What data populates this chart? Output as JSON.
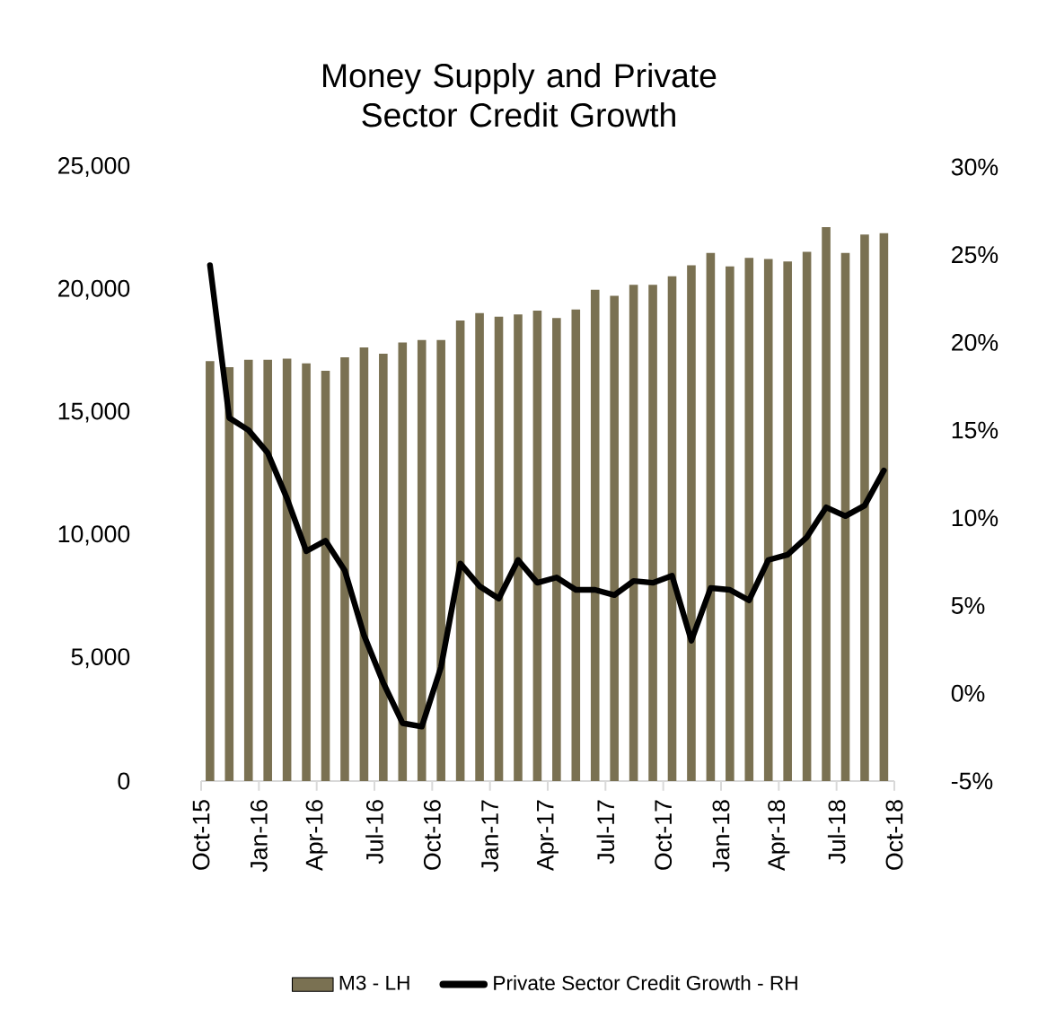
{
  "chart_data": {
    "type": "bar",
    "title": "Money Supply and Private Sector Credit Growth",
    "x": [
      "2015-10-15",
      "2015-11-15",
      "2015-12-15",
      "2016-01-15",
      "2016-02-15",
      "2016-03-15",
      "2016-04-15",
      "2016-05-15",
      "2016-06-15",
      "2016-07-15",
      "2016-08-15",
      "2016-09-15",
      "2016-10-15",
      "2016-11-15",
      "2016-12-15",
      "2017-01-15",
      "2017-02-15",
      "2017-03-15",
      "2017-04-15",
      "2017-05-15",
      "2017-06-15",
      "2017-07-15",
      "2017-08-15",
      "2017-09-15",
      "2017-10-15",
      "2017-11-15",
      "2017-12-15",
      "2018-01-15",
      "2018-02-15",
      "2018-03-15",
      "2018-04-15",
      "2018-05-15",
      "2018-06-15",
      "2018-07-15",
      "2018-08-15",
      "2018-09-15"
    ],
    "series": [
      {
        "name": "M3 - LH",
        "color": "#7a7152",
        "values": [
          17100,
          16850,
          17150,
          17150,
          17200,
          17000,
          16700,
          17250,
          17650,
          17400,
          17850,
          17950,
          17950,
          18750,
          19050,
          18900,
          19000,
          19150,
          18850,
          19200,
          20000,
          19750,
          20200,
          20200,
          20550,
          21000,
          21500,
          20950,
          21300,
          21250,
          21150,
          21550,
          22550,
          21500,
          22250,
          22300
        ]
      },
      {
        "name": "Private Sector Credit Growth - RH",
        "type": "line",
        "axis": "y2",
        "color": "#000000",
        "values": [
          24.4,
          15.7,
          15.0,
          13.7,
          11.1,
          8.1,
          8.7,
          7.0,
          3.3,
          0.6,
          -1.7,
          -1.9,
          1.5,
          7.4,
          6.1,
          5.4,
          7.6,
          6.3,
          6.6,
          5.9,
          5.9,
          5.6,
          6.4,
          6.3,
          6.7,
          3.0,
          6.0,
          5.9,
          5.3,
          7.6,
          7.9,
          8.9,
          10.6,
          10.1,
          10.7,
          12.7
        ]
      }
    ],
    "xlim": [
      "2015-10",
      "2018-10"
    ],
    "xticks": [
      {
        "value": "2015-10",
        "label": "Oct-15"
      },
      {
        "value": "2016-01",
        "label": "Jan-16"
      },
      {
        "value": "2016-04",
        "label": "Apr-16"
      },
      {
        "value": "2016-07",
        "label": "Jul-16"
      },
      {
        "value": "2016-10",
        "label": "Oct-16"
      },
      {
        "value": "2017-01",
        "label": "Jan-17"
      },
      {
        "value": "2017-04",
        "label": "Apr-17"
      },
      {
        "value": "2017-07",
        "label": "Jul-17"
      },
      {
        "value": "2017-10",
        "label": "Oct-17"
      },
      {
        "value": "2018-01",
        "label": "Jan-18"
      },
      {
        "value": "2018-04",
        "label": "Apr-18"
      },
      {
        "value": "2018-07",
        "label": "Jul-18"
      },
      {
        "value": "2018-10",
        "label": "Oct-18"
      }
    ],
    "ylim": [
      0,
      25000
    ],
    "yticks": [
      0,
      {
        "value": 5000,
        "label": "5,000"
      },
      {
        "value": 10000,
        "label": "10,000"
      },
      {
        "value": 15000,
        "label": "15,000"
      },
      {
        "value": 20000,
        "label": "20,000"
      },
      {
        "value": 25000,
        "label": "25,000"
      }
    ],
    "y2lim": [
      -5,
      30
    ],
    "y2ticks": [
      {
        "value": -5,
        "label": "-5%"
      },
      {
        "value": 0,
        "label": "0%"
      },
      {
        "value": 5,
        "label": "5%"
      },
      {
        "value": 10,
        "label": "10%"
      },
      {
        "value": 15,
        "label": "15%"
      },
      {
        "value": 20,
        "label": "20%"
      },
      {
        "value": 25,
        "label": "25%"
      },
      {
        "value": 30,
        "label": "30%"
      }
    ],
    "legend": "bottom",
    "grid": false
  }
}
